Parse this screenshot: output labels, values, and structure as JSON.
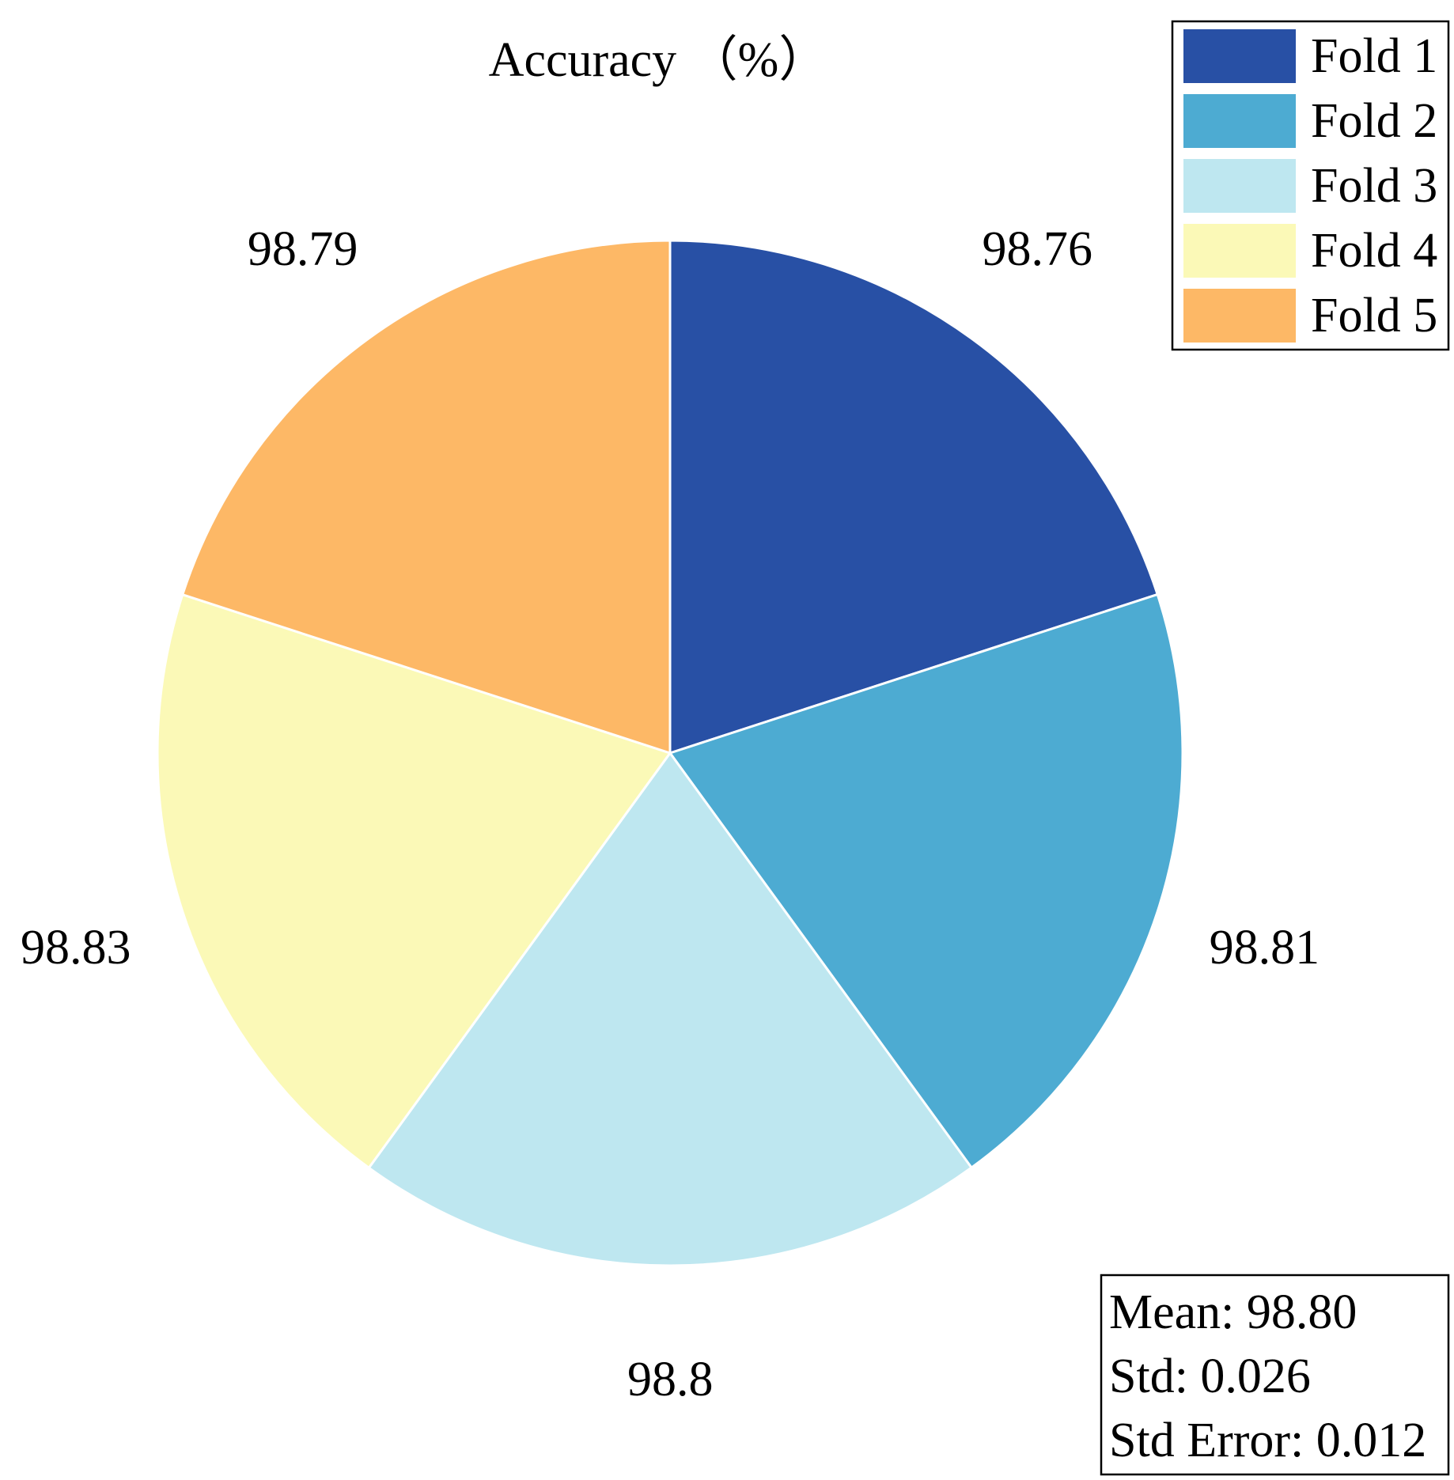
{
  "chart_data": {
    "type": "pie",
    "title": "Accuracy （%）",
    "series": [
      {
        "name": "Fold 1",
        "value": 98.76,
        "label": "98.76",
        "color": "#2850A5"
      },
      {
        "name": "Fold 2",
        "value": 98.81,
        "label": "98.81",
        "color": "#4DABD2"
      },
      {
        "name": "Fold 3",
        "value": 98.8,
        "label": "98.8",
        "color": "#BEE7F0"
      },
      {
        "name": "Fold 4",
        "value": 98.83,
        "label": "98.83",
        "color": "#FBF9B7"
      },
      {
        "name": "Fold 5",
        "value": 98.79,
        "label": "98.79",
        "color": "#FDB866"
      }
    ],
    "start_direction": "top",
    "direction": "clockwise",
    "legend_placement": "top-right",
    "stats": {
      "mean": "Mean: 98.80",
      "std": "Std: 0.026",
      "std_error": "Std Error: 0.012"
    },
    "stats_placement": "bottom-right"
  }
}
